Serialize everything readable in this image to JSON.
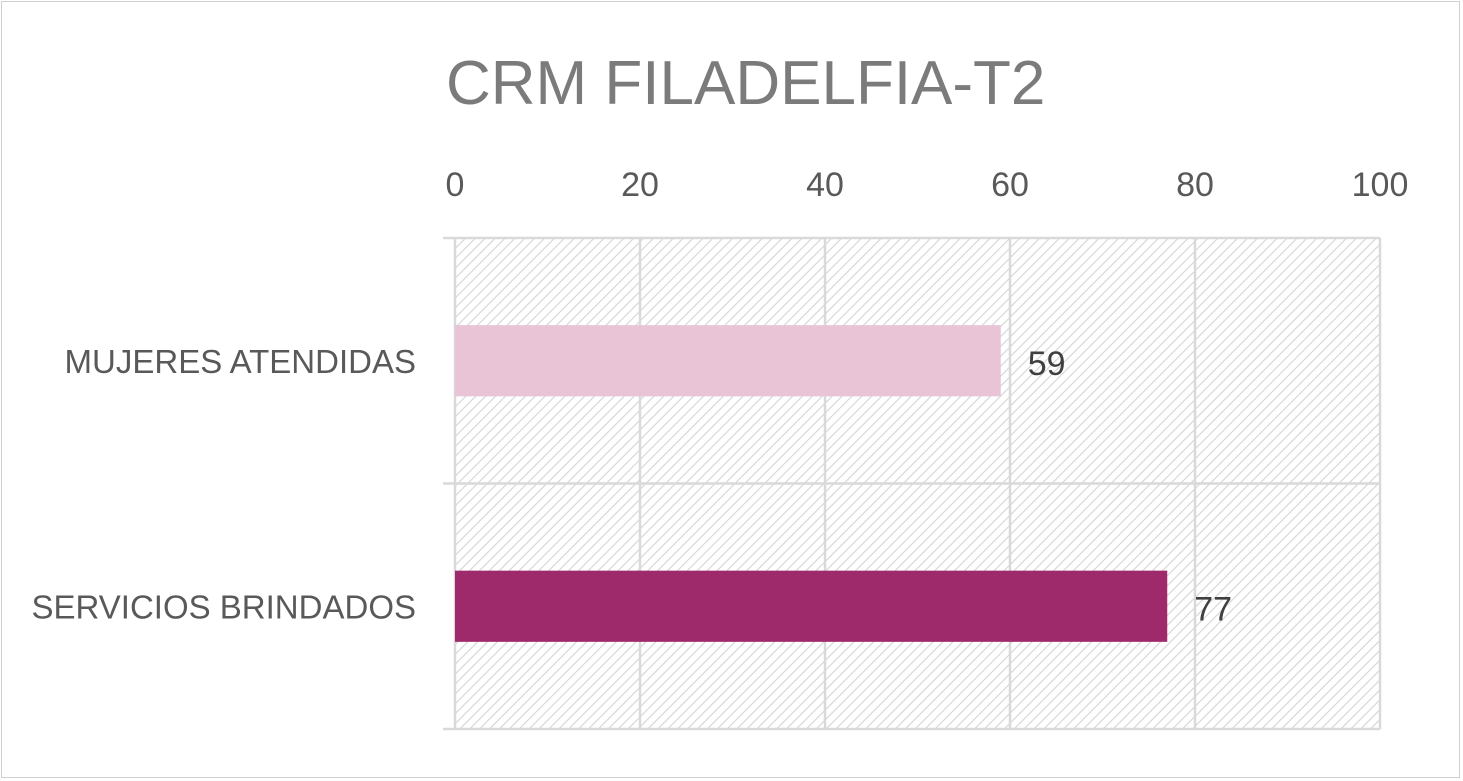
{
  "chart_data": {
    "type": "bar",
    "orientation": "horizontal",
    "title": "CRM FILADELFIA-T2",
    "categories": [
      "MUJERES ATENDIDAS",
      "SERVICIOS BRINDADOS"
    ],
    "values": [
      59,
      77
    ],
    "data_labels": [
      "59",
      "77"
    ],
    "bar_colors": [
      "#e9c4d7",
      "#9e2a6b"
    ],
    "xlim": [
      0,
      100
    ],
    "x_ticks": [
      0,
      20,
      40,
      60,
      80,
      100
    ],
    "x_tick_labels": [
      "0",
      "20",
      "40",
      "60",
      "80",
      "100"
    ],
    "x_axis_position": "top",
    "grid": true,
    "plot_background": "diagonal-hatch",
    "legend": "none"
  }
}
